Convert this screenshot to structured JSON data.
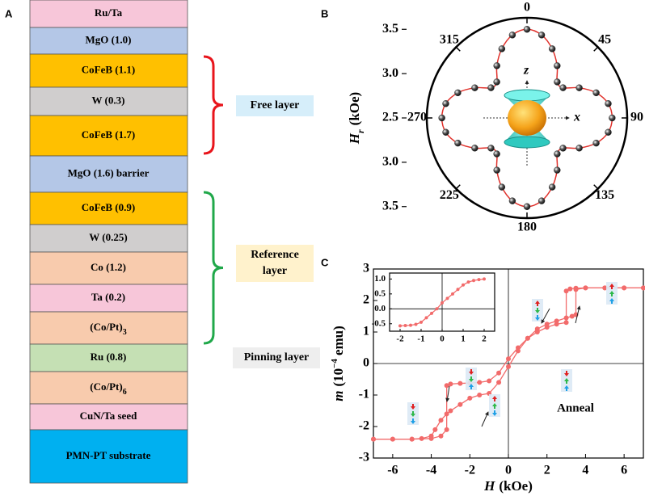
{
  "panels": [
    "A",
    "B",
    "C"
  ],
  "stack": {
    "layers": [
      {
        "label": "Ru/Ta",
        "color": "#f7c6d9"
      },
      {
        "label": "MgO (1.0)",
        "color": "#b4c7e7"
      },
      {
        "label": "CoFeB (1.1)",
        "color": "#ffc000"
      },
      {
        "label": "W (0.3)",
        "color": "#d0cece"
      },
      {
        "label": "CoFeB (1.7)",
        "color": "#ffc000"
      },
      {
        "label": "MgO (1.6) barrier",
        "color": "#b4c7e7"
      },
      {
        "label": "CoFeB (0.9)",
        "color": "#ffc000"
      },
      {
        "label": "W (0.25)",
        "color": "#d0cece"
      },
      {
        "label": "Co (1.2)",
        "color": "#f8cbad"
      },
      {
        "label": "Ta (0.2)",
        "color": "#f7c6d9"
      },
      {
        "label": "(Co/Pt)",
        "sub": "3",
        "color": "#f8cbad"
      },
      {
        "label": "Ru (0.8)",
        "color": "#c5e0b4"
      },
      {
        "label": "(Co/Pt)",
        "sub": "6",
        "color": "#f8cbad"
      },
      {
        "label": "CuN/Ta seed",
        "color": "#f7c6d9"
      },
      {
        "label": "PMN-PT substrate",
        "color": "#00b0f0"
      }
    ],
    "groups": [
      {
        "label": [
          "Free layer"
        ],
        "color": "#e8141b",
        "box": "#d6eefa"
      },
      {
        "label": [
          "Reference",
          "layer"
        ],
        "color": "#20a84a",
        "box": "#fff2cc"
      },
      {
        "label": [
          "Pinning layer"
        ],
        "color": "#2aa7dc",
        "box": "#eeeeee"
      }
    ]
  },
  "chart_data": [
    {
      "type": "polar",
      "theta": [
        0,
        10,
        20,
        30,
        40,
        50,
        60,
        70,
        80,
        90,
        100,
        110,
        120,
        130,
        140,
        150,
        160,
        170,
        180,
        190,
        200,
        210,
        220,
        230,
        240,
        250,
        260,
        270,
        280,
        290,
        300,
        310,
        320,
        330,
        340,
        350
      ],
      "values": [
        3.5,
        3.45,
        3.33,
        3.18,
        3.03,
        3.03,
        3.18,
        3.33,
        3.43,
        3.46,
        3.43,
        3.33,
        3.18,
        3.03,
        3.03,
        3.18,
        3.33,
        3.45,
        3.5,
        3.45,
        3.33,
        3.18,
        3.03,
        3.03,
        3.18,
        3.33,
        3.43,
        3.46,
        3.43,
        3.33,
        3.18,
        3.03,
        3.03,
        3.18,
        3.33,
        3.45
      ],
      "color": "#e0302a",
      "marker_color": "#222222",
      "rlim": [
        2.5,
        3.63
      ],
      "rticks": [
        2.5,
        {
          "value": 3,
          "label": "3.0"
        },
        3.5
      ],
      "thetaticks": [
        0,
        45,
        90,
        135,
        180,
        225,
        270,
        315
      ],
      "rlabel": {
        "symbol": "H",
        "sub": "r",
        "unit": "(kOe)"
      },
      "annotations": [
        "z",
        "x"
      ]
    },
    {
      "type": "line",
      "series": [
        {
          "color": "#f26b6b",
          "x": [
            7,
            6,
            5,
            4,
            3.5,
            3.2,
            3.0,
            3.0,
            2.5,
            2,
            1.5,
            1,
            0.5,
            0,
            -0.5,
            -1,
            -1.5,
            -2,
            -2.5,
            -3,
            -3.2,
            -3.2,
            -3.5,
            -4,
            -5,
            -6,
            -7
          ],
          "values": [
            2.4,
            2.4,
            2.4,
            2.4,
            2.39,
            2.37,
            2.3,
            1.3,
            1.25,
            1.15,
            1.0,
            0.8,
            0.5,
            0.15,
            -0.3,
            -0.55,
            -0.6,
            -0.62,
            -0.63,
            -0.65,
            -0.7,
            -2.1,
            -2.3,
            -2.38,
            -2.4,
            -2.4,
            -2.4
          ]
        },
        {
          "color": "#f26b6b",
          "x": [
            -7,
            -6,
            -5,
            -4.5,
            -4,
            -3.8,
            -3.5,
            -3.2,
            -3,
            -2.5,
            -2,
            -1.5,
            -1,
            -0.5,
            0,
            0.5,
            1,
            1.5,
            2,
            2.5,
            3,
            3.3,
            3.5,
            3.5,
            4,
            5,
            6,
            7
          ],
          "values": [
            -2.4,
            -2.4,
            -2.4,
            -2.38,
            -2.3,
            -2.1,
            -1.8,
            -1.6,
            -1.5,
            -1.3,
            -1.1,
            -1.0,
            -0.95,
            -0.6,
            -0.1,
            0.4,
            0.8,
            1.1,
            1.25,
            1.35,
            1.45,
            1.5,
            1.55,
            2.35,
            2.4,
            2.4,
            2.4,
            2.4
          ]
        }
      ],
      "xlim": [
        -7,
        7
      ],
      "ylim": [
        -3,
        3
      ],
      "xticks": [
        -6,
        -4,
        -2,
        0,
        2,
        4,
        6
      ],
      "yticks": [
        -3,
        -2,
        -1,
        0,
        1,
        2,
        3
      ],
      "zero_lines": true,
      "xlabel": {
        "symbol": "H",
        "unit": "(kOe)"
      },
      "ylabel": {
        "symbol": "m",
        "unit_open": "(10",
        "sup": "−4",
        "unit_close": "emu)"
      },
      "annotation": "Anneal",
      "inset": {
        "type": "line",
        "series": [
          {
            "color": "#f26b6b",
            "x": [
              -2,
              -1.75,
              -1.5,
              -1.25,
              -1,
              -0.75,
              -0.5,
              -0.25,
              0,
              0.25,
              0.5,
              0.75,
              1,
              1.25,
              1.5,
              1.75,
              2
            ],
            "values": [
              -0.57,
              -0.56,
              -0.55,
              -0.52,
              -0.45,
              -0.3,
              -0.15,
              0.0,
              0.2,
              0.35,
              0.5,
              0.65,
              0.8,
              0.9,
              0.95,
              0.98,
              1.0
            ]
          }
        ],
        "xlim": [
          -2.5,
          2.5
        ],
        "ylim": [
          -0.75,
          1.2
        ],
        "xticks": [
          -2,
          -1,
          0,
          1,
          2
        ],
        "yticks": [
          {
            "value": -0.5,
            "label": "-0.5"
          },
          {
            "value": 0,
            "label": "0.0"
          },
          {
            "value": 0.5,
            "label": "0.5"
          },
          {
            "value": 1,
            "label": "1.0"
          }
        ],
        "zero_lines": true
      }
    }
  ]
}
